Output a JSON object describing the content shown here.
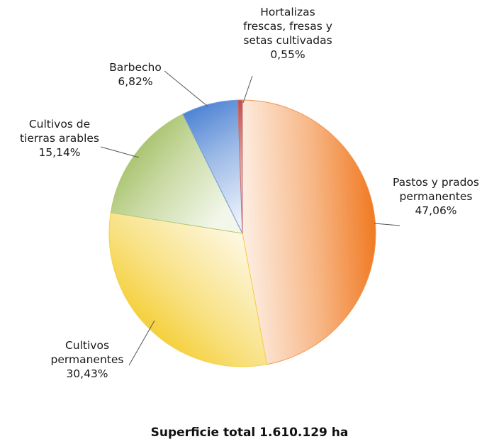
{
  "chart_data": {
    "type": "pie",
    "slices": [
      {
        "label": [
          "Pastos y prados",
          "permanentes"
        ],
        "value_label": "47,06%",
        "value": 47.06,
        "color": "#f07a22"
      },
      {
        "label": [
          "Cultivos",
          "permanentes"
        ],
        "value_label": "30,43%",
        "value": 30.43,
        "color": "#f3c81c"
      },
      {
        "label": [
          "Cultivos de",
          "tierras arables"
        ],
        "value_label": "15,14%",
        "value": 15.14,
        "color": "#9cbb59"
      },
      {
        "label": [
          "Barbecho"
        ],
        "value_label": "6,82%",
        "value": 6.82,
        "color": "#4f84d4"
      },
      {
        "label": [
          "Hortalizas",
          "frescas, fresas y",
          "setas cultivadas"
        ],
        "value_label": "0,55%",
        "value": 0.55,
        "color": "#c0504d"
      }
    ],
    "footer": "Superficie total 1.610.129 ha",
    "legend": "none"
  }
}
